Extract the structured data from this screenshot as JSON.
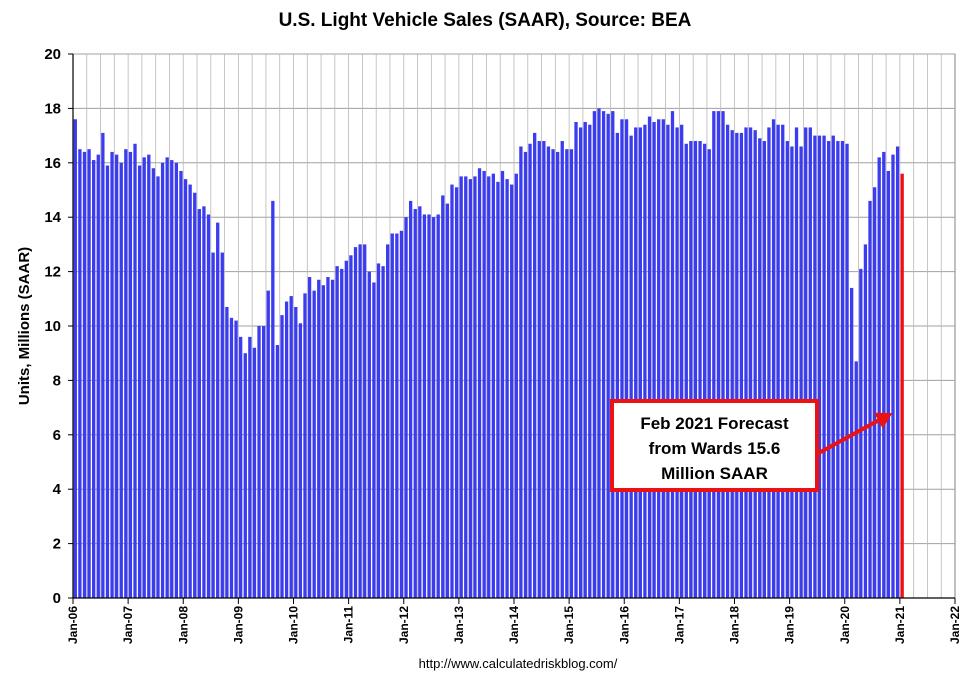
{
  "chart_data": {
    "type": "bar",
    "title": "U.S. Light Vehicle Sales (SAAR), Source: BEA",
    "ylabel": "Units, Millions (SAAR)",
    "xlabel": "",
    "ylim": [
      0,
      20
    ],
    "yticks": [
      "0",
      "2",
      "4",
      "6",
      "8",
      "10",
      "12",
      "14",
      "16",
      "18",
      "20"
    ],
    "xticks": [
      "Jan-06",
      "Jan-07",
      "Jan-08",
      "Jan-09",
      "Jan-10",
      "Jan-11",
      "Jan-12",
      "Jan-13",
      "Jan-14",
      "Jan-15",
      "Jan-16",
      "Jan-17",
      "Jan-18",
      "Jan-19",
      "Jan-20",
      "Jan-21",
      "Jan-22"
    ],
    "grid": true,
    "colors": {
      "bars": "#3b3bf0",
      "forecast": "#ee1111",
      "annotation": "#ee1111",
      "grid": "#a0a0a0"
    },
    "x_start": "2006-01",
    "values": [
      17.6,
      16.5,
      16.4,
      16.5,
      16.1,
      16.3,
      17.1,
      15.9,
      16.4,
      16.3,
      16.0,
      16.5,
      16.4,
      16.7,
      15.9,
      16.2,
      16.3,
      15.8,
      15.5,
      16.0,
      16.2,
      16.1,
      16.0,
      15.7,
      15.4,
      15.2,
      14.9,
      14.3,
      14.4,
      14.1,
      12.7,
      13.8,
      12.7,
      10.7,
      10.3,
      10.2,
      9.6,
      9.0,
      9.6,
      9.2,
      10.0,
      10.0,
      11.3,
      14.6,
      9.3,
      10.4,
      10.9,
      11.1,
      10.7,
      10.1,
      11.2,
      11.8,
      11.3,
      11.7,
      11.5,
      11.8,
      11.7,
      12.2,
      12.1,
      12.4,
      12.6,
      12.9,
      13.0,
      13.0,
      12.0,
      11.6,
      12.3,
      12.2,
      13.0,
      13.4,
      13.4,
      13.5,
      14.0,
      14.6,
      14.3,
      14.4,
      14.1,
      14.1,
      14.0,
      14.1,
      14.8,
      14.5,
      15.2,
      15.1,
      15.5,
      15.5,
      15.4,
      15.5,
      15.8,
      15.7,
      15.5,
      15.6,
      15.3,
      15.7,
      15.4,
      15.2,
      15.6,
      16.6,
      16.4,
      16.7,
      17.1,
      16.8,
      16.8,
      16.6,
      16.5,
      16.4,
      16.8,
      16.5,
      16.5,
      17.5,
      17.3,
      17.5,
      17.4,
      17.9,
      18.0,
      17.9,
      17.8,
      17.9,
      17.1,
      17.6,
      17.6,
      17.0,
      17.3,
      17.3,
      17.4,
      17.7,
      17.5,
      17.6,
      17.6,
      17.4,
      17.9,
      17.3,
      17.4,
      16.7,
      16.8,
      16.8,
      16.8,
      16.7,
      16.5,
      17.9,
      17.9,
      17.9,
      17.4,
      17.2,
      17.1,
      17.1,
      17.3,
      17.3,
      17.2,
      16.9,
      16.8,
      17.3,
      17.6,
      17.4,
      17.4,
      16.8,
      16.6,
      17.3,
      16.6,
      17.3,
      17.3,
      17.0,
      17.0,
      17.0,
      16.8,
      17.0,
      16.8,
      16.8,
      16.7,
      11.4,
      8.7,
      12.1,
      13.0,
      14.6,
      15.1,
      16.2,
      16.4,
      15.7,
      16.3,
      16.6
    ],
    "forecast": {
      "label": "Feb 2021",
      "value": 15.6
    },
    "annotation": {
      "lines": [
        "Feb 2021 Forecast",
        "from Wards 15.6",
        "Million SAAR"
      ]
    },
    "source": "http://www.calculatedriskblog.com/"
  }
}
